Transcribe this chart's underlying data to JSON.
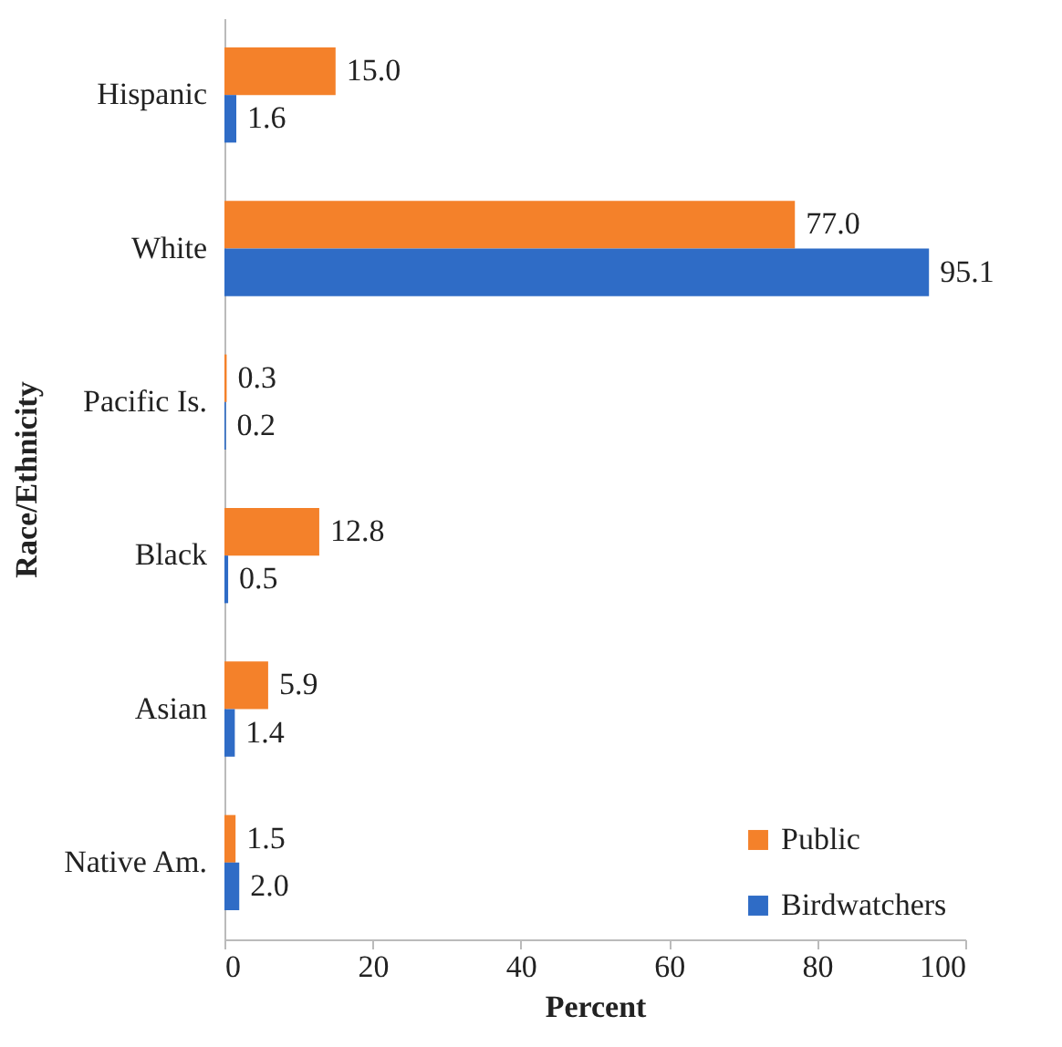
{
  "chart_data": {
    "type": "bar",
    "orientation": "horizontal",
    "xlabel": "Percent",
    "ylabel": "Race/Ethnicity",
    "categories": [
      "Hispanic",
      "White",
      "Pacific Is.",
      "Black",
      "Asian",
      "Native Am."
    ],
    "series": [
      {
        "name": "Public",
        "color": "#f4812a",
        "values": [
          15.0,
          77.0,
          0.3,
          12.8,
          5.9,
          1.5
        ],
        "value_labels": [
          "15.0",
          "77.0",
          "0.3",
          "12.8",
          "5.9",
          "1.5"
        ]
      },
      {
        "name": "Birdwatchers",
        "color": "#2f6cc6",
        "values": [
          1.6,
          95.1,
          0.2,
          0.5,
          1.4,
          2.0
        ],
        "value_labels": [
          "1.6",
          "95.1",
          "0.2",
          "0.5",
          "1.4",
          "2.0"
        ]
      }
    ],
    "xlim": [
      0,
      100
    ],
    "xticks": [
      0,
      20,
      40,
      60,
      80,
      100
    ],
    "grid": false,
    "legend": "bottom right"
  }
}
